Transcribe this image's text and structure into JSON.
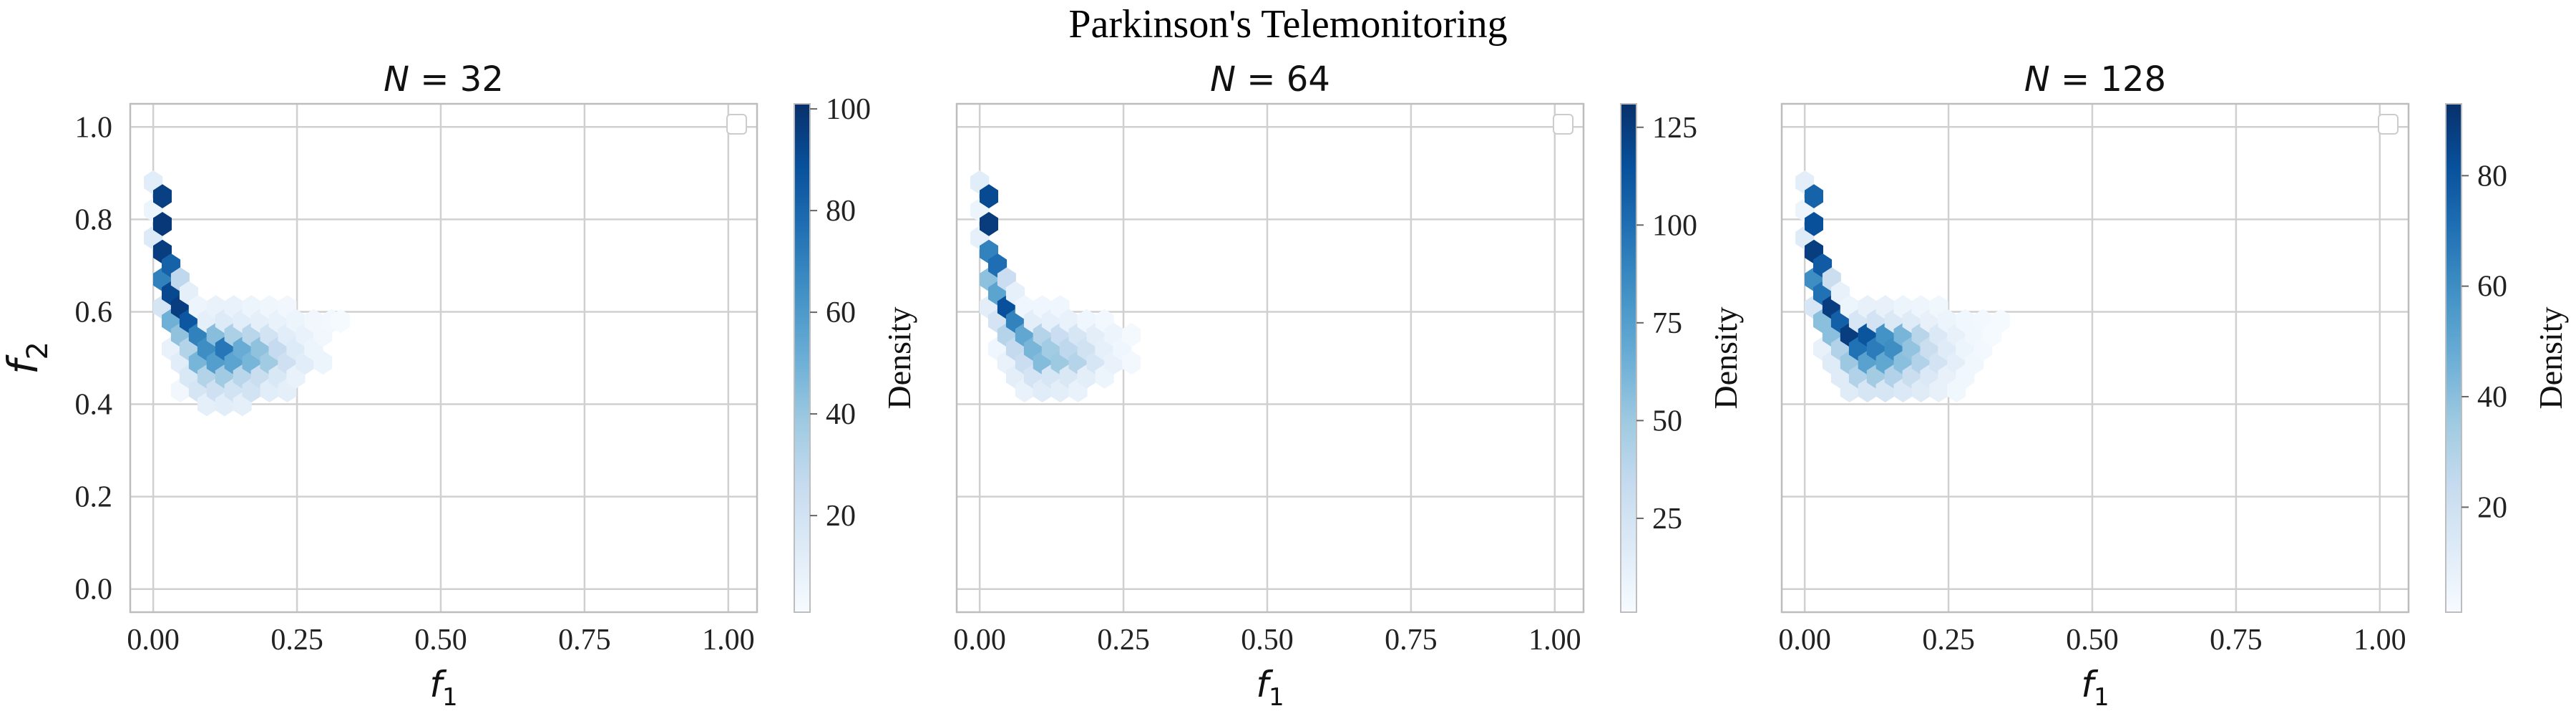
{
  "figure": {
    "suptitle": "Parkinson's Telemonitoring"
  },
  "chart_data": [
    {
      "type": "heatmap",
      "subtype": "hexbin",
      "title": "N = 32",
      "title_math": {
        "base": "N",
        "rest": " = 32"
      },
      "xlabel": {
        "base": "f",
        "sub": "1"
      },
      "ylabel": {
        "base": "f",
        "sub": "2"
      },
      "show_ylabel": true,
      "show_ytick_labels": true,
      "xlim": [
        -0.04,
        1.05
      ],
      "ylim": [
        -0.05,
        1.05
      ],
      "xticks": [
        0.0,
        0.25,
        0.5,
        0.75,
        1.0
      ],
      "xtick_labels": [
        "0.00",
        "0.25",
        "0.50",
        "0.75",
        "1.00"
      ],
      "yticks": [
        0.0,
        0.2,
        0.4,
        0.6,
        0.8,
        1.0
      ],
      "ytick_labels": [
        "0.0",
        "0.2",
        "0.4",
        "0.6",
        "0.8",
        "1.0"
      ],
      "grid": true,
      "legend": "top-right (empty)",
      "colormap": "Blues",
      "colorbar": {
        "label": "Density",
        "min": 1,
        "max": 101,
        "ticks": [
          20,
          40,
          60,
          80,
          100
        ]
      },
      "hex_size": 0.018,
      "bins": [
        [
          0.0,
          0.88,
          12
        ],
        [
          0.0,
          0.82,
          6
        ],
        [
          0.0,
          0.76,
          14
        ],
        [
          0.016,
          0.85,
          95
        ],
        [
          0.016,
          0.79,
          98
        ],
        [
          0.016,
          0.73,
          96
        ],
        [
          0.016,
          0.67,
          70
        ],
        [
          0.016,
          0.61,
          18
        ],
        [
          0.031,
          0.7,
          82
        ],
        [
          0.031,
          0.64,
          92
        ],
        [
          0.031,
          0.58,
          50
        ],
        [
          0.031,
          0.52,
          8
        ],
        [
          0.047,
          0.67,
          28
        ],
        [
          0.047,
          0.61,
          96
        ],
        [
          0.047,
          0.55,
          42
        ],
        [
          0.047,
          0.49,
          12
        ],
        [
          0.047,
          0.43,
          4
        ],
        [
          0.062,
          0.64,
          10
        ],
        [
          0.062,
          0.58,
          86
        ],
        [
          0.062,
          0.52,
          32
        ],
        [
          0.062,
          0.46,
          16
        ],
        [
          0.078,
          0.61,
          6
        ],
        [
          0.078,
          0.55,
          70
        ],
        [
          0.078,
          0.49,
          48
        ],
        [
          0.078,
          0.43,
          18
        ],
        [
          0.093,
          0.58,
          10
        ],
        [
          0.093,
          0.52,
          65
        ],
        [
          0.093,
          0.46,
          32
        ],
        [
          0.093,
          0.4,
          10
        ],
        [
          0.109,
          0.61,
          8
        ],
        [
          0.109,
          0.55,
          44
        ],
        [
          0.109,
          0.49,
          58
        ],
        [
          0.109,
          0.43,
          22
        ],
        [
          0.124,
          0.58,
          14
        ],
        [
          0.124,
          0.52,
          74
        ],
        [
          0.124,
          0.46,
          38
        ],
        [
          0.124,
          0.4,
          12
        ],
        [
          0.14,
          0.61,
          8
        ],
        [
          0.14,
          0.55,
          34
        ],
        [
          0.14,
          0.49,
          56
        ],
        [
          0.14,
          0.43,
          20
        ],
        [
          0.155,
          0.58,
          12
        ],
        [
          0.155,
          0.52,
          52
        ],
        [
          0.155,
          0.46,
          30
        ],
        [
          0.155,
          0.4,
          10
        ],
        [
          0.171,
          0.61,
          6
        ],
        [
          0.171,
          0.55,
          30
        ],
        [
          0.171,
          0.49,
          48
        ],
        [
          0.171,
          0.43,
          20
        ],
        [
          0.186,
          0.58,
          10
        ],
        [
          0.186,
          0.52,
          42
        ],
        [
          0.186,
          0.46,
          24
        ],
        [
          0.202,
          0.61,
          5
        ],
        [
          0.202,
          0.55,
          20
        ],
        [
          0.202,
          0.49,
          38
        ],
        [
          0.202,
          0.43,
          12
        ],
        [
          0.217,
          0.58,
          8
        ],
        [
          0.217,
          0.52,
          26
        ],
        [
          0.217,
          0.46,
          16
        ],
        [
          0.233,
          0.61,
          4
        ],
        [
          0.233,
          0.55,
          12
        ],
        [
          0.233,
          0.49,
          22
        ],
        [
          0.233,
          0.43,
          10
        ],
        [
          0.248,
          0.58,
          6
        ],
        [
          0.248,
          0.52,
          14
        ],
        [
          0.248,
          0.46,
          8
        ],
        [
          0.264,
          0.55,
          8
        ],
        [
          0.264,
          0.49,
          12
        ],
        [
          0.279,
          0.58,
          4
        ],
        [
          0.279,
          0.52,
          6
        ],
        [
          0.295,
          0.55,
          4
        ],
        [
          0.295,
          0.49,
          6
        ],
        [
          0.31,
          0.58,
          3
        ],
        [
          0.326,
          0.58,
          2
        ]
      ]
    },
    {
      "type": "heatmap",
      "subtype": "hexbin",
      "title": "N = 64",
      "title_math": {
        "base": "N",
        "rest": " = 64"
      },
      "xlabel": {
        "base": "f",
        "sub": "1"
      },
      "ylabel": {
        "base": "f",
        "sub": "2"
      },
      "show_ylabel": false,
      "show_ytick_labels": false,
      "xlim": [
        -0.04,
        1.05
      ],
      "ylim": [
        -0.05,
        1.05
      ],
      "xticks": [
        0.0,
        0.25,
        0.5,
        0.75,
        1.0
      ],
      "xtick_labels": [
        "0.00",
        "0.25",
        "0.50",
        "0.75",
        "1.00"
      ],
      "yticks": [
        0.0,
        0.2,
        0.4,
        0.6,
        0.8,
        1.0
      ],
      "ytick_labels": [
        "0.0",
        "0.2",
        "0.4",
        "0.6",
        "0.8",
        "1.0"
      ],
      "grid": true,
      "legend": "top-right (empty)",
      "colormap": "Blues",
      "colorbar": {
        "label": "Density",
        "min": 1,
        "max": 131,
        "ticks": [
          25,
          50,
          75,
          100,
          125
        ]
      },
      "hex_size": 0.018,
      "bins": [
        [
          0.0,
          0.88,
          15
        ],
        [
          0.0,
          0.82,
          8
        ],
        [
          0.0,
          0.76,
          12
        ],
        [
          0.016,
          0.85,
          118
        ],
        [
          0.016,
          0.79,
          125
        ],
        [
          0.016,
          0.73,
          90
        ],
        [
          0.016,
          0.67,
          55
        ],
        [
          0.016,
          0.61,
          14
        ],
        [
          0.031,
          0.7,
          100
        ],
        [
          0.031,
          0.64,
          72
        ],
        [
          0.031,
          0.58,
          24
        ],
        [
          0.031,
          0.52,
          6
        ],
        [
          0.047,
          0.67,
          30
        ],
        [
          0.047,
          0.61,
          115
        ],
        [
          0.047,
          0.55,
          40
        ],
        [
          0.047,
          0.49,
          10
        ],
        [
          0.062,
          0.64,
          12
        ],
        [
          0.062,
          0.58,
          90
        ],
        [
          0.062,
          0.52,
          34
        ],
        [
          0.062,
          0.46,
          14
        ],
        [
          0.078,
          0.61,
          6
        ],
        [
          0.078,
          0.55,
          70
        ],
        [
          0.078,
          0.49,
          30
        ],
        [
          0.078,
          0.43,
          10
        ],
        [
          0.093,
          0.58,
          14
        ],
        [
          0.093,
          0.52,
          62
        ],
        [
          0.093,
          0.46,
          24
        ],
        [
          0.109,
          0.61,
          6
        ],
        [
          0.109,
          0.55,
          40
        ],
        [
          0.109,
          0.49,
          58
        ],
        [
          0.109,
          0.43,
          16
        ],
        [
          0.124,
          0.58,
          12
        ],
        [
          0.124,
          0.52,
          48
        ],
        [
          0.124,
          0.46,
          22
        ],
        [
          0.14,
          0.61,
          6
        ],
        [
          0.14,
          0.55,
          30
        ],
        [
          0.14,
          0.49,
          50
        ],
        [
          0.14,
          0.43,
          14
        ],
        [
          0.155,
          0.58,
          10
        ],
        [
          0.155,
          0.52,
          36
        ],
        [
          0.155,
          0.46,
          20
        ],
        [
          0.171,
          0.55,
          22
        ],
        [
          0.171,
          0.49,
          40
        ],
        [
          0.171,
          0.43,
          10
        ],
        [
          0.186,
          0.58,
          6
        ],
        [
          0.186,
          0.52,
          26
        ],
        [
          0.186,
          0.46,
          14
        ],
        [
          0.202,
          0.55,
          14
        ],
        [
          0.202,
          0.49,
          22
        ],
        [
          0.217,
          0.58,
          4
        ],
        [
          0.217,
          0.52,
          12
        ],
        [
          0.217,
          0.46,
          8
        ],
        [
          0.233,
          0.55,
          8
        ],
        [
          0.233,
          0.49,
          10
        ],
        [
          0.248,
          0.52,
          6
        ],
        [
          0.264,
          0.55,
          3
        ],
        [
          0.264,
          0.49,
          4
        ]
      ]
    },
    {
      "type": "heatmap",
      "subtype": "hexbin",
      "title": "N = 128",
      "title_math": {
        "base": "N",
        "rest": " = 128"
      },
      "xlabel": {
        "base": "f",
        "sub": "1"
      },
      "ylabel": {
        "base": "f",
        "sub": "2"
      },
      "show_ylabel": false,
      "show_ytick_labels": false,
      "xlim": [
        -0.04,
        1.05
      ],
      "ylim": [
        -0.05,
        1.05
      ],
      "xticks": [
        0.0,
        0.25,
        0.5,
        0.75,
        1.0
      ],
      "xtick_labels": [
        "0.00",
        "0.25",
        "0.50",
        "0.75",
        "1.00"
      ],
      "yticks": [
        0.0,
        0.2,
        0.4,
        0.6,
        0.8,
        1.0
      ],
      "ytick_labels": [
        "0.0",
        "0.2",
        "0.4",
        "0.6",
        "0.8",
        "1.0"
      ],
      "grid": true,
      "legend": "top-right (empty)",
      "colormap": "Blues",
      "colorbar": {
        "label": "Density",
        "min": 1,
        "max": 93,
        "ticks": [
          20,
          40,
          60,
          80
        ]
      },
      "hex_size": 0.018,
      "bins": [
        [
          0.0,
          0.88,
          10
        ],
        [
          0.0,
          0.82,
          6
        ],
        [
          0.0,
          0.76,
          12
        ],
        [
          0.016,
          0.85,
          75
        ],
        [
          0.016,
          0.79,
          82
        ],
        [
          0.016,
          0.73,
          88
        ],
        [
          0.016,
          0.67,
          60
        ],
        [
          0.016,
          0.61,
          16
        ],
        [
          0.031,
          0.7,
          78
        ],
        [
          0.031,
          0.64,
          70
        ],
        [
          0.031,
          0.58,
          40
        ],
        [
          0.031,
          0.52,
          8
        ],
        [
          0.047,
          0.67,
          22
        ],
        [
          0.047,
          0.61,
          88
        ],
        [
          0.047,
          0.55,
          40
        ],
        [
          0.047,
          0.49,
          12
        ],
        [
          0.062,
          0.64,
          8
        ],
        [
          0.062,
          0.58,
          76
        ],
        [
          0.062,
          0.52,
          30
        ],
        [
          0.062,
          0.46,
          12
        ],
        [
          0.078,
          0.61,
          6
        ],
        [
          0.078,
          0.55,
          88
        ],
        [
          0.078,
          0.49,
          36
        ],
        [
          0.078,
          0.43,
          12
        ],
        [
          0.093,
          0.58,
          16
        ],
        [
          0.093,
          0.52,
          70
        ],
        [
          0.093,
          0.46,
          30
        ],
        [
          0.109,
          0.61,
          8
        ],
        [
          0.109,
          0.55,
          80
        ],
        [
          0.109,
          0.49,
          52
        ],
        [
          0.109,
          0.43,
          16
        ],
        [
          0.124,
          0.58,
          18
        ],
        [
          0.124,
          0.52,
          66
        ],
        [
          0.124,
          0.46,
          34
        ],
        [
          0.14,
          0.61,
          8
        ],
        [
          0.14,
          0.55,
          58
        ],
        [
          0.14,
          0.49,
          50
        ],
        [
          0.14,
          0.43,
          16
        ],
        [
          0.155,
          0.58,
          14
        ],
        [
          0.155,
          0.52,
          60
        ],
        [
          0.155,
          0.46,
          30
        ],
        [
          0.171,
          0.61,
          6
        ],
        [
          0.171,
          0.55,
          44
        ],
        [
          0.171,
          0.49,
          40
        ],
        [
          0.171,
          0.43,
          14
        ],
        [
          0.186,
          0.58,
          12
        ],
        [
          0.186,
          0.52,
          38
        ],
        [
          0.186,
          0.46,
          22
        ],
        [
          0.202,
          0.61,
          5
        ],
        [
          0.202,
          0.55,
          28
        ],
        [
          0.202,
          0.49,
          30
        ],
        [
          0.202,
          0.43,
          12
        ],
        [
          0.217,
          0.58,
          8
        ],
        [
          0.217,
          0.52,
          22
        ],
        [
          0.217,
          0.46,
          14
        ],
        [
          0.233,
          0.61,
          4
        ],
        [
          0.233,
          0.55,
          14
        ],
        [
          0.233,
          0.49,
          18
        ],
        [
          0.233,
          0.43,
          8
        ],
        [
          0.248,
          0.58,
          6
        ],
        [
          0.248,
          0.52,
          12
        ],
        [
          0.248,
          0.46,
          8
        ],
        [
          0.264,
          0.55,
          8
        ],
        [
          0.264,
          0.49,
          10
        ],
        [
          0.264,
          0.43,
          4
        ],
        [
          0.279,
          0.58,
          4
        ],
        [
          0.279,
          0.52,
          6
        ],
        [
          0.279,
          0.46,
          4
        ],
        [
          0.295,
          0.55,
          4
        ],
        [
          0.295,
          0.49,
          4
        ],
        [
          0.31,
          0.58,
          3
        ],
        [
          0.31,
          0.52,
          3
        ],
        [
          0.326,
          0.55,
          2
        ],
        [
          0.341,
          0.58,
          2
        ]
      ]
    }
  ]
}
